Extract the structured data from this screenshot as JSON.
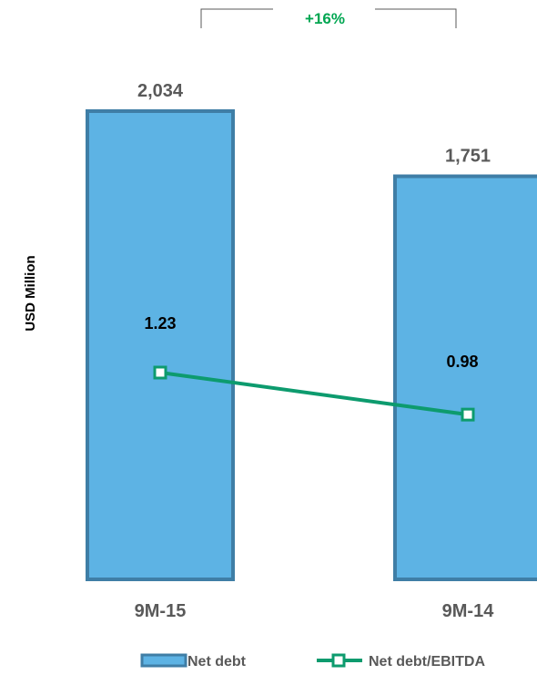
{
  "chart_data": {
    "type": "bar",
    "categories": [
      "9M-15",
      "9M-14"
    ],
    "ylabel": "USD Million",
    "series": [
      {
        "name": "Net debt",
        "type": "bar",
        "values": [
          2034,
          1751
        ],
        "value_labels": [
          "2,034",
          "1,751"
        ],
        "color": "#5DB3E4",
        "border_color": "#3F7EA6"
      },
      {
        "name": "Net debt/EBITDA",
        "type": "line",
        "values": [
          1.23,
          0.98
        ],
        "value_labels": [
          "1.23",
          "0.98"
        ],
        "color": "#0D9B6E"
      }
    ],
    "annotation": {
      "text": "+16%",
      "color": "#00A651"
    },
    "ylim": [
      0,
      2300
    ],
    "line_ylim": [
      0,
      2.15
    ],
    "legend_position": "bottom",
    "grid": false,
    "label_color": "#595959"
  }
}
